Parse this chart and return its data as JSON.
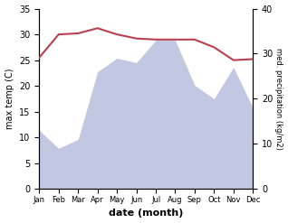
{
  "months": [
    "Jan",
    "Feb",
    "Mar",
    "Apr",
    "May",
    "Jun",
    "Jul",
    "Aug",
    "Sep",
    "Oct",
    "Nov",
    "Dec"
  ],
  "temperature": [
    25.5,
    30.0,
    30.2,
    31.2,
    30.0,
    29.2,
    29.0,
    29.0,
    29.0,
    27.5,
    25.0,
    25.2
  ],
  "precipitation": [
    13,
    9,
    11,
    26,
    29,
    28,
    33,
    33,
    23,
    20,
    27,
    18
  ],
  "temp_color": "#b94050",
  "precip_fill_color": "#b8bfdc",
  "temp_ylim": [
    0,
    35
  ],
  "precip_ylim": [
    0,
    40
  ],
  "temp_yticks": [
    0,
    5,
    10,
    15,
    20,
    25,
    30,
    35
  ],
  "precip_yticks": [
    0,
    10,
    20,
    30,
    40
  ],
  "xlabel": "date (month)",
  "ylabel_left": "max temp (C)",
  "ylabel_right": "med. precipitation (kg/m2)",
  "bg_color": "#ffffff"
}
